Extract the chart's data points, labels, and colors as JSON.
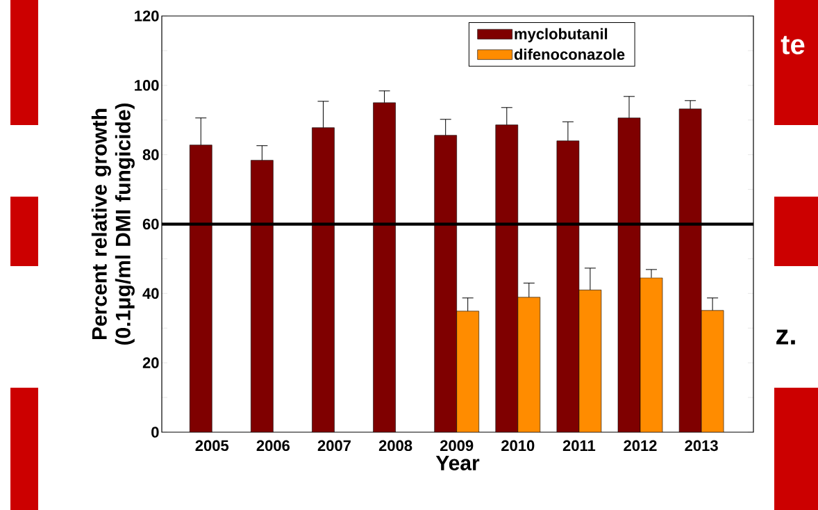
{
  "chart_data": {
    "type": "bar",
    "xlabel": "Year",
    "ylabel": "Percent relative growth (0.1μg/ml DMI fungicide)",
    "categories": [
      "2005",
      "2006",
      "2007",
      "2008",
      "2009",
      "2010",
      "2011",
      "2012",
      "2013"
    ],
    "series": [
      {
        "name": "myclobutanil",
        "color": "#7f0000",
        "values": [
          82.8,
          78.4,
          87.8,
          95.0,
          85.6,
          88.6,
          84.0,
          90.6,
          93.2
        ],
        "errors": [
          7.8,
          4.2,
          7.6,
          3.4,
          4.6,
          5.0,
          5.5,
          6.2,
          2.4
        ]
      },
      {
        "name": "difenoconazole",
        "color": "#ff8c00",
        "values": [
          null,
          null,
          null,
          null,
          34.9,
          38.9,
          41.0,
          44.5,
          35.1
        ],
        "errors": [
          null,
          null,
          null,
          null,
          3.8,
          4.1,
          6.3,
          2.4,
          3.6
        ]
      }
    ],
    "ylim": [
      0,
      120
    ],
    "yticks": [
      0,
      20,
      40,
      60,
      80,
      100,
      120
    ],
    "ref_lines": [
      {
        "axis": "y",
        "value": 60,
        "color": "#000000"
      }
    ],
    "legend": "top right",
    "annotations": [
      "te",
      "z."
    ]
  }
}
